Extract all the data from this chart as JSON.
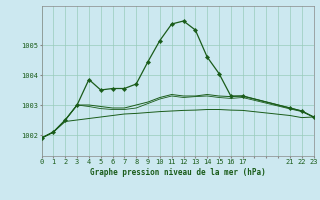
{
  "bg_color": "#cce8f0",
  "grid_color": "#99ccbb",
  "line_color": "#1a5c1a",
  "title": "Graphe pression niveau de la mer (hPa)",
  "ylabel_ticks": [
    1002,
    1003,
    1004,
    1005
  ],
  "xlim": [
    0,
    23
  ],
  "ylim": [
    1001.3,
    1006.3
  ],
  "xtick_labels": [
    "0",
    "1",
    "2",
    "3",
    "4",
    "5",
    "6",
    "7",
    "8",
    "9",
    "10",
    "11",
    "12",
    "13",
    "14",
    "15",
    "16",
    "17",
    "",
    "",
    "",
    "21",
    "22",
    "23"
  ],
  "xtick_positions": [
    0,
    1,
    2,
    3,
    4,
    5,
    6,
    7,
    8,
    9,
    10,
    11,
    12,
    13,
    14,
    15,
    16,
    17,
    18,
    19,
    20,
    21,
    22,
    23
  ],
  "series1_x": [
    0,
    1,
    2,
    3,
    4,
    5,
    6,
    7,
    8,
    9,
    10,
    11,
    12,
    13,
    14,
    15,
    16,
    17,
    21,
    22,
    23
  ],
  "series1_y": [
    1001.9,
    1002.1,
    1002.5,
    1003.0,
    1003.85,
    1003.5,
    1003.55,
    1003.55,
    1003.7,
    1004.45,
    1005.15,
    1005.7,
    1005.8,
    1005.5,
    1004.6,
    1004.05,
    1003.3,
    1003.3,
    1002.9,
    1002.8,
    1002.6
  ],
  "series3_x": [
    0,
    1,
    2,
    3,
    4,
    5,
    6,
    7,
    8,
    9,
    10,
    11,
    12,
    13,
    14,
    15,
    16,
    17,
    21,
    22,
    23
  ],
  "series3_y": [
    1001.9,
    1002.1,
    1002.45,
    1002.5,
    1002.55,
    1002.6,
    1002.65,
    1002.7,
    1002.72,
    1002.75,
    1002.78,
    1002.8,
    1002.82,
    1002.83,
    1002.85,
    1002.85,
    1002.83,
    1002.82,
    1002.65,
    1002.58,
    1002.6
  ],
  "series4_x": [
    0,
    1,
    2,
    3,
    4,
    5,
    6,
    7,
    8,
    9,
    10,
    11,
    12,
    13,
    14,
    15,
    16,
    17,
    21,
    22,
    23
  ],
  "series4_y": [
    1001.9,
    1002.1,
    1002.5,
    1003.0,
    1003.0,
    1002.95,
    1002.9,
    1002.9,
    1003.0,
    1003.1,
    1003.25,
    1003.35,
    1003.3,
    1003.3,
    1003.35,
    1003.3,
    1003.28,
    1003.3,
    1002.9,
    1002.8,
    1002.6
  ],
  "series5_x": [
    0,
    1,
    2,
    3,
    4,
    5,
    6,
    7,
    8,
    9,
    10,
    11,
    12,
    13,
    14,
    15,
    16,
    17,
    21,
    22,
    23
  ],
  "series5_y": [
    1001.9,
    1002.1,
    1002.5,
    1003.0,
    1002.95,
    1002.88,
    1002.85,
    1002.85,
    1002.9,
    1003.05,
    1003.2,
    1003.3,
    1003.25,
    1003.28,
    1003.3,
    1003.25,
    1003.22,
    1003.25,
    1002.87,
    1002.78,
    1002.6
  ]
}
